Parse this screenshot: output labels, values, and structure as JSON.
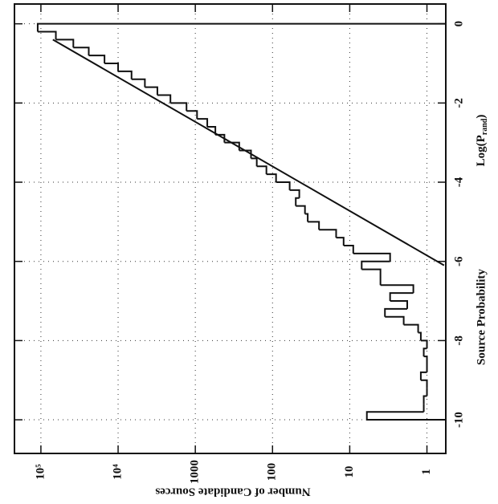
{
  "chart_data": {
    "type": "histogram",
    "x_label": "Source Probability",
    "x_label_var": "Log(P",
    "x_label_var_sub": "rand",
    "x_label_var_end": ")",
    "y_label": "Number of Candidate Sources",
    "bins": [
      -10,
      -9.8,
      -9.6,
      -9.4,
      -9.2,
      -9,
      -8.8,
      -8.6,
      -8.4,
      -8.2,
      -8,
      -7.8,
      -7.6,
      -7.4,
      -7.2,
      -7,
      -6.8,
      -6.6,
      -6.4,
      -6.2,
      -6,
      -5.8,
      -5.6,
      -5.4,
      -5.2,
      -5,
      -4.8,
      -4.6,
      -4.4,
      -4.2,
      -4,
      -3.8,
      -3.6,
      -3.4,
      -3.2,
      -3,
      -2.8,
      -2.6,
      -2.4,
      -2.2,
      -2,
      -1.8,
      -1.6,
      -1.4,
      -1.2,
      -1,
      -0.8,
      -0.6,
      -0.4,
      -0.2,
      0
    ],
    "values": [
      6,
      1.1,
      1.1,
      1,
      1,
      1.2,
      1,
      1,
      1.1,
      1,
      1.2,
      1.3,
      2,
      3.5,
      1.8,
      3,
      1.5,
      4,
      4,
      7,
      3,
      9,
      12,
      15,
      25,
      35,
      38,
      50,
      45,
      60,
      90,
      120,
      160,
      190,
      270,
      420,
      550,
      700,
      950,
      1300,
      2100,
      3100,
      4500,
      6700,
      10000,
      15000,
      24000,
      38000,
      64000,
      110000
    ],
    "fit_line": {
      "x": [
        -0.4,
        -6.1
      ],
      "values": [
        70000,
        0.6
      ]
    },
    "xlim": [
      -10.85,
      0.5
    ],
    "ylim": [
      0.57,
      220000
    ],
    "y_log": true,
    "xticks": [
      -10,
      -8,
      -6,
      -4,
      -2,
      0
    ],
    "yticks": [
      1,
      10,
      100,
      1000,
      {
        "value": 10000,
        "label": "10⁴"
      },
      {
        "value": 100000,
        "label": "10⁵"
      }
    ],
    "grid": true,
    "color": "#111111"
  }
}
